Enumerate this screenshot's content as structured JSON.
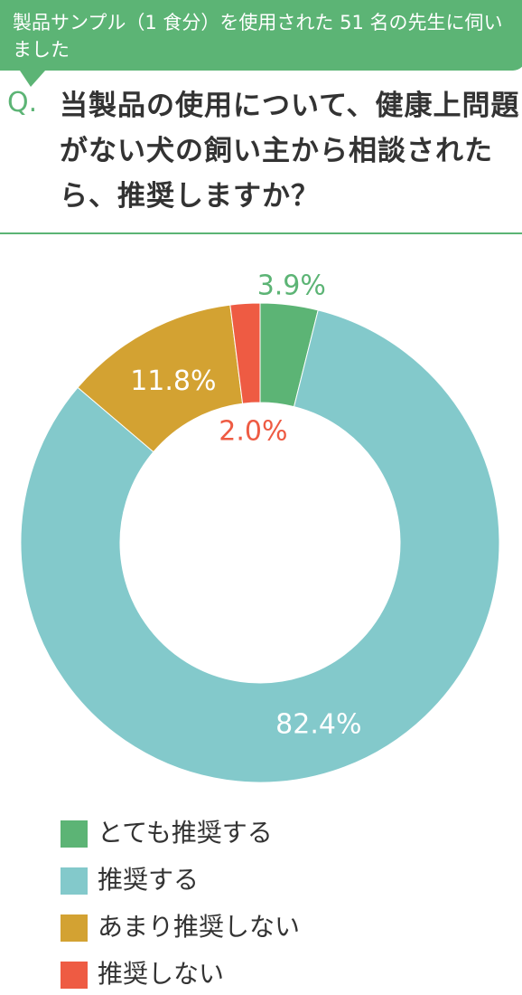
{
  "header": {
    "note": "製品サンプル（1 食分）を使用された 51 名の先生に伺いました",
    "q_mark": "Q.",
    "question": "当製品の使用について、健康上問題がない犬の飼い主から相談されたら、推奨しますか？"
  },
  "chart_data": {
    "type": "donut",
    "categories": [
      "とても推奨する",
      "推奨する",
      "あまり推奨しない",
      "推奨しない"
    ],
    "values": [
      3.9,
      82.4,
      11.8,
      2.0
    ],
    "value_labels": [
      "3.9%",
      "82.4%",
      "11.8%",
      "2.0%"
    ],
    "colors": [
      "#5cb475",
      "#83c9cb",
      "#d3a232",
      "#ee5b43"
    ]
  }
}
